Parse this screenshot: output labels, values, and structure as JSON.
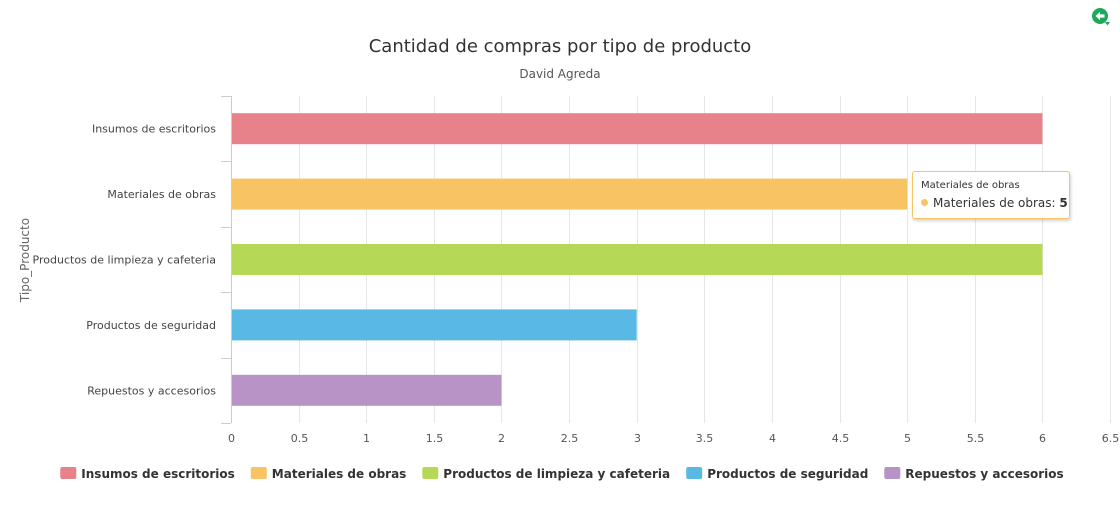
{
  "toolbar": {
    "back_icon": "back-arrow-icon",
    "back_color": "#1ea85c"
  },
  "chart_data": {
    "type": "bar",
    "orientation": "horizontal",
    "title": "Cantidad de compras por tipo de producto",
    "subtitle": "David Agreda",
    "xlabel": "",
    "ylabel": "Tipo_Producto",
    "xlim": [
      0,
      6.5
    ],
    "x_ticks": [
      0,
      0.5,
      1,
      1.5,
      2,
      2.5,
      3,
      3.5,
      4,
      4.5,
      5,
      5.5,
      6,
      6.5
    ],
    "grid": true,
    "legend_position": "bottom",
    "categories": [
      "Insumos de escritorios",
      "Materiales de obras",
      "Productos de limpieza y cafeteria",
      "Productos de seguridad",
      "Repuestos y accesorios"
    ],
    "values": [
      6,
      5,
      6,
      3,
      2
    ],
    "colors": [
      "#e8828a",
      "#f8c363",
      "#b5d957",
      "#5ab8e5",
      "#b893c6"
    ],
    "legend": [
      "Insumos de escritorios",
      "Materiales de obras",
      "Productos de limpieza y cafeteria",
      "Productos de seguridad",
      "Repuestos y accesorios"
    ]
  },
  "tooltip": {
    "header": "Materiales de obras",
    "series": "Materiales de obras",
    "separator": ": ",
    "value": "5",
    "color": "#f8c363"
  }
}
